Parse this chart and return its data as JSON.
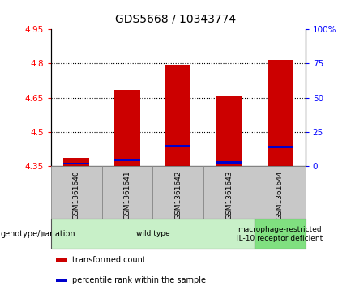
{
  "title": "GDS5668 / 10343774",
  "samples": [
    "GSM1361640",
    "GSM1361641",
    "GSM1361642",
    "GSM1361643",
    "GSM1361644"
  ],
  "bar_bottom": 4.35,
  "transformed_counts": [
    4.385,
    4.685,
    4.795,
    4.655,
    4.815
  ],
  "percentile_values": [
    4.357,
    4.372,
    4.432,
    4.362,
    4.43
  ],
  "ylim_left": [
    4.35,
    4.95
  ],
  "ylim_right": [
    0,
    100
  ],
  "yticks_left": [
    4.35,
    4.5,
    4.65,
    4.8,
    4.95
  ],
  "ytick_labels_left": [
    "4.35",
    "4.5",
    "4.65",
    "4.8",
    "4.95"
  ],
  "yticks_right": [
    0,
    25,
    50,
    75,
    100
  ],
  "ytick_labels_right": [
    "0",
    "25",
    "50",
    "75",
    "100%"
  ],
  "hlines": [
    4.5,
    4.65,
    4.8
  ],
  "bar_color": "#cc0000",
  "percentile_color": "#0000cc",
  "bar_width": 0.5,
  "groups": [
    {
      "label": "wild type",
      "cols": [
        0,
        1,
        2,
        3
      ],
      "color": "#c8f0c8"
    },
    {
      "label": "macrophage-restricted\nIL-10 receptor deficient",
      "cols": [
        4
      ],
      "color": "#80e080"
    }
  ],
  "group_row_label": "genotype/variation",
  "legend_items": [
    {
      "color": "#cc0000",
      "label": "transformed count"
    },
    {
      "color": "#0000cc",
      "label": "percentile rank within the sample"
    }
  ],
  "plot_bg": "#ffffff",
  "sample_row_bg": "#c8c8c8",
  "fig_bg": "#ffffff",
  "title_fontsize": 10,
  "tick_fontsize": 7.5,
  "label_fontsize": 7.5
}
